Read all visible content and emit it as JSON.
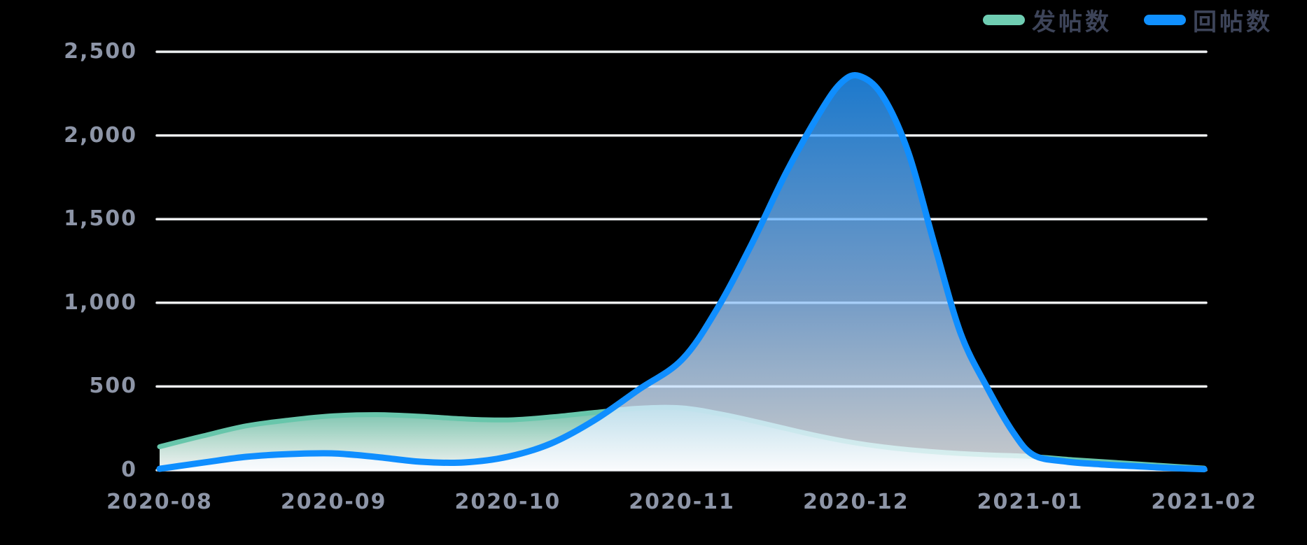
{
  "legend": {
    "items": [
      {
        "label": "发帖数",
        "color": "#6fcdb2"
      },
      {
        "label": "回帖数",
        "color": "#1090ff"
      }
    ]
  },
  "chart_data": {
    "type": "area",
    "title": "",
    "xlabel": "",
    "ylabel": "",
    "grid": true,
    "legend_position": "top-right",
    "x_axis": {
      "labels": [
        "2020-08",
        "2020-09",
        "2020-10",
        "2020-11",
        "2020-12",
        "2021-01",
        "2021-02"
      ]
    },
    "y_axis": {
      "labels": [
        "0",
        "500",
        "1,000",
        "1,500",
        "2,000",
        "2,500"
      ],
      "values": [
        0,
        500,
        1000,
        1500,
        2000,
        2500
      ],
      "min": 0,
      "max": 2500
    },
    "series": [
      {
        "name": "发帖数",
        "color": "#68c6ab",
        "line_width": 7,
        "fill_opacity": 0.95,
        "fill": {
          "top": "#79cbb3",
          "mid": "#c6e9dd",
          "bottom": "#ffffff"
        },
        "points": [
          [
            0,
            140
          ],
          [
            0.25,
            205
          ],
          [
            0.5,
            265
          ],
          [
            0.75,
            300
          ],
          [
            1,
            325
          ],
          [
            1.25,
            332
          ],
          [
            1.5,
            322
          ],
          [
            1.75,
            306
          ],
          [
            2,
            300
          ],
          [
            2.25,
            318
          ],
          [
            2.5,
            345
          ],
          [
            2.75,
            370
          ],
          [
            3,
            372
          ],
          [
            3.25,
            330
          ],
          [
            3.5,
            272
          ],
          [
            3.75,
            212
          ],
          [
            4,
            162
          ],
          [
            4.25,
            128
          ],
          [
            4.5,
            106
          ],
          [
            4.75,
            92
          ],
          [
            5,
            82
          ],
          [
            5.25,
            62
          ],
          [
            5.5,
            45
          ],
          [
            5.75,
            28
          ],
          [
            6,
            12
          ]
        ]
      },
      {
        "name": "回帖数",
        "color": "#0f8eff",
        "line_width": 9,
        "fill_opacity": 0.8,
        "fill": {
          "top": "#2397ff",
          "mid": "#8ec1f8",
          "bottom": "#fbfdff"
        },
        "points": [
          [
            0,
            8
          ],
          [
            0.25,
            45
          ],
          [
            0.5,
            80
          ],
          [
            0.75,
            96
          ],
          [
            1,
            100
          ],
          [
            1.25,
            78
          ],
          [
            1.5,
            50
          ],
          [
            1.75,
            46
          ],
          [
            2,
            80
          ],
          [
            2.25,
            160
          ],
          [
            2.5,
            300
          ],
          [
            2.75,
            480
          ],
          [
            3,
            660
          ],
          [
            3.2,
            960
          ],
          [
            3.4,
            1350
          ],
          [
            3.6,
            1780
          ],
          [
            3.8,
            2150
          ],
          [
            3.92,
            2320
          ],
          [
            4.02,
            2355
          ],
          [
            4.15,
            2240
          ],
          [
            4.3,
            1900
          ],
          [
            4.45,
            1350
          ],
          [
            4.6,
            820
          ],
          [
            4.75,
            500
          ],
          [
            4.9,
            230
          ],
          [
            5.02,
            90
          ],
          [
            5.2,
            52
          ],
          [
            5.4,
            35
          ],
          [
            5.6,
            24
          ],
          [
            5.8,
            13
          ],
          [
            6,
            6
          ]
        ]
      }
    ],
    "style": {
      "gridline_color": "#eef0f2",
      "axis_label_color": "#8d95a7"
    }
  }
}
